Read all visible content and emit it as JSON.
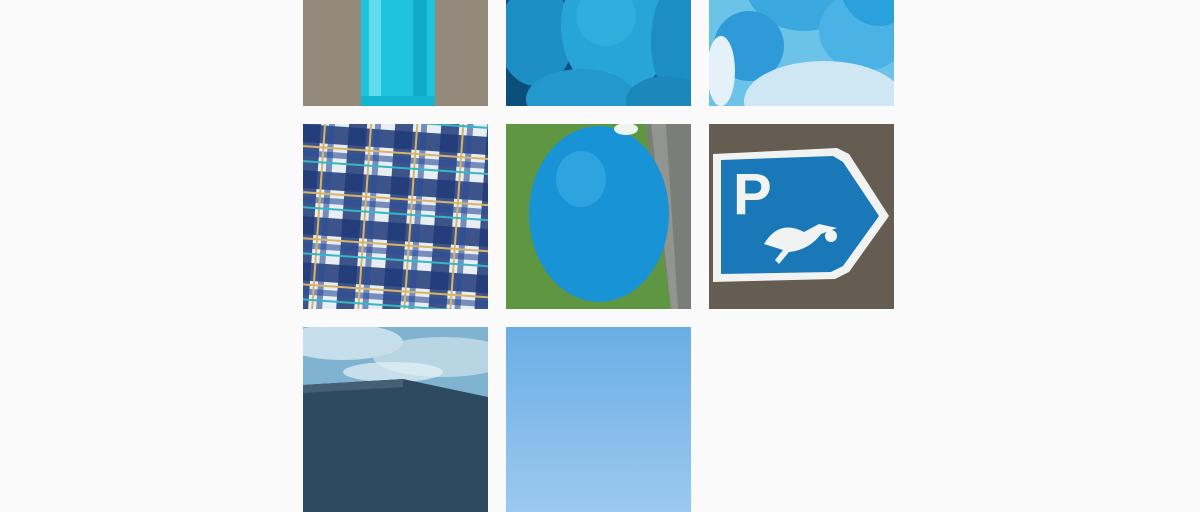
{
  "photo_grid": {
    "posts": [
      {
        "subject": "turquoise-bottle"
      },
      {
        "subject": "blue-fluffy-hearts"
      },
      {
        "subject": "blue-balloons-cluster"
      },
      {
        "subject": "blue-plaid-blanket"
      },
      {
        "subject": "blue-balloon-on-grass"
      },
      {
        "subject": "parking-sign-stork",
        "sign_letter": "P"
      },
      {
        "subject": "cloudy-sky-building"
      },
      {
        "subject": "clear-blue-sky"
      }
    ]
  },
  "colors": {
    "page_background": "#fafafa",
    "accent_blue": "#1e88c8",
    "turquoise": "#27c6e0"
  }
}
